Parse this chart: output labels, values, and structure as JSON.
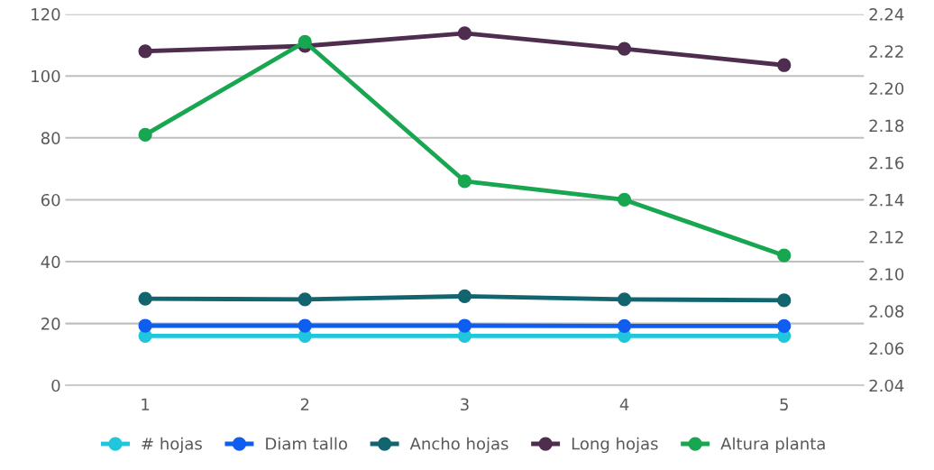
{
  "chart_data": {
    "type": "line",
    "categories": [
      "1",
      "2",
      "3",
      "4",
      "5"
    ],
    "series": [
      {
        "name": "# hojas",
        "color": "#1fc6dc",
        "values": [
          16,
          16,
          16,
          16,
          16
        ]
      },
      {
        "name": "Diam tallo",
        "color": "#0f5ef0",
        "values": [
          19.3,
          19.3,
          19.3,
          19.2,
          19.2
        ]
      },
      {
        "name": "Ancho hojas",
        "color": "#12656f",
        "values": [
          28,
          27.8,
          28.8,
          27.8,
          27.5
        ]
      },
      {
        "name": "Long hojas",
        "color": "#4f2d4f",
        "values": [
          108,
          109.7,
          113.8,
          108.8,
          103.5
        ]
      },
      {
        "name": "Altura planta",
        "color": "#18a651",
        "axis": "y2",
        "values": [
          2.175,
          2.225,
          2.15,
          2.14,
          2.11
        ]
      }
    ],
    "ylim": [
      0,
      120
    ],
    "yticks": [
      0,
      20,
      40,
      60,
      80,
      100,
      120
    ],
    "y2lim": [
      2.04,
      2.24
    ],
    "y2ticks": [
      {
        "value": 2.04,
        "label": "2.04"
      },
      {
        "value": 2.06,
        "label": "2.06"
      },
      {
        "value": 2.08,
        "label": "2.08"
      },
      {
        "value": 2.1,
        "label": "2.10"
      },
      {
        "value": 2.12,
        "label": "2.12"
      },
      {
        "value": 2.14,
        "label": "2.14"
      },
      {
        "value": 2.16,
        "label": "2.16"
      },
      {
        "value": 2.18,
        "label": "2.18"
      },
      {
        "value": 2.2,
        "label": "2.20"
      },
      {
        "value": 2.22,
        "label": "2.22"
      },
      {
        "value": 2.24,
        "label": "2.24"
      }
    ],
    "grid": "y",
    "legend": "bottom",
    "marker": "circle",
    "line_style": "solid"
  }
}
